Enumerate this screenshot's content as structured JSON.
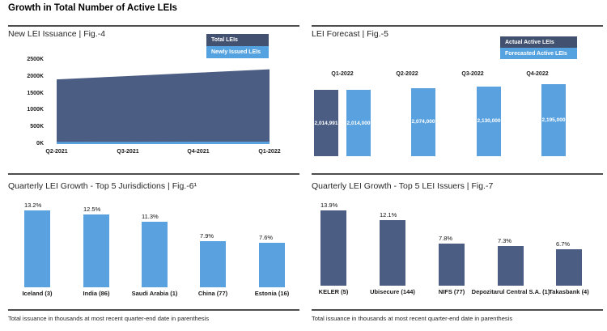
{
  "page_title": "Growth in Total Number of Active LEIs",
  "footnote": "Total issuance in thousands at most recent quarter-end date in parenthesis",
  "colors": {
    "dark_blue": "#4C5D84",
    "light_blue": "#59A2DF",
    "legend_dark": "#41516F",
    "legend_light": "#55A2E0"
  },
  "chart_data": [
    {
      "id": "fig4",
      "type": "area",
      "title": "New LEI Issuance | Fig.-4",
      "categories": [
        "Q2-2021",
        "Q3-2021",
        "Q4-2021",
        "Q1-2022"
      ],
      "series": [
        {
          "name": "Total LEIs",
          "color": "#4C5D84",
          "values": [
            1920000,
            2020000,
            2120000,
            2220000
          ]
        },
        {
          "name": "Newly Issued LEIs",
          "color": "#59A2DF",
          "values": [
            45000,
            48000,
            52000,
            55000
          ]
        }
      ],
      "yticks": [
        "2500K",
        "2000K",
        "1500K",
        "1000K",
        "500K",
        "0K"
      ],
      "ylim": [
        0,
        2500000
      ],
      "values_estimated": true,
      "legend_position": "top-right",
      "grid": false
    },
    {
      "id": "fig5",
      "type": "bar",
      "title": "LEI Forecast | Fig.-5",
      "categories": [
        "Q1-2022",
        "Q2-2022",
        "Q3-2022",
        "Q4-2022"
      ],
      "series": [
        {
          "name": "Actual Active LEIs",
          "color": "#4C5D84",
          "values": [
            2014991,
            null,
            null,
            null
          ]
        },
        {
          "name": "Forecasted Active LEIs",
          "color": "#59A2DF",
          "values": [
            2014000,
            2074000,
            2130000,
            2195000
          ]
        }
      ],
      "labels": [
        "2,014,991",
        "2,014,000",
        "2,074,000",
        "2,130,000",
        "2,195,000"
      ],
      "legend_position": "top-right",
      "grid": false
    },
    {
      "id": "fig6",
      "type": "bar",
      "title": "Quarterly LEI Growth - Top 5 Jurisdictions | Fig.-6¹",
      "categories": [
        "Iceland (3)",
        "India (86)",
        "Saudi Arabia (1)",
        "China (77)",
        "Estonia (16)"
      ],
      "values": [
        13.2,
        12.5,
        11.3,
        7.9,
        7.6
      ],
      "labels": [
        "13.2%",
        "12.5%",
        "11.3%",
        "7.9%",
        "7.6%"
      ],
      "bar_color": "#59A2DF",
      "grid": false
    },
    {
      "id": "fig7",
      "type": "bar",
      "title": "Quarterly LEI Growth - Top 5 LEI Issuers | Fig.-7",
      "categories": [
        "KELER (5)",
        "Ubisecure (144)",
        "NIFS (77)",
        "Depozitarul Central S.A. (1)",
        "Takasbank (4)"
      ],
      "values": [
        13.9,
        12.1,
        7.8,
        7.3,
        6.7
      ],
      "labels": [
        "13.9%",
        "12.1%",
        "7.8%",
        "7.3%",
        "6.7%"
      ],
      "bar_color": "#4C5D84",
      "grid": false
    }
  ]
}
